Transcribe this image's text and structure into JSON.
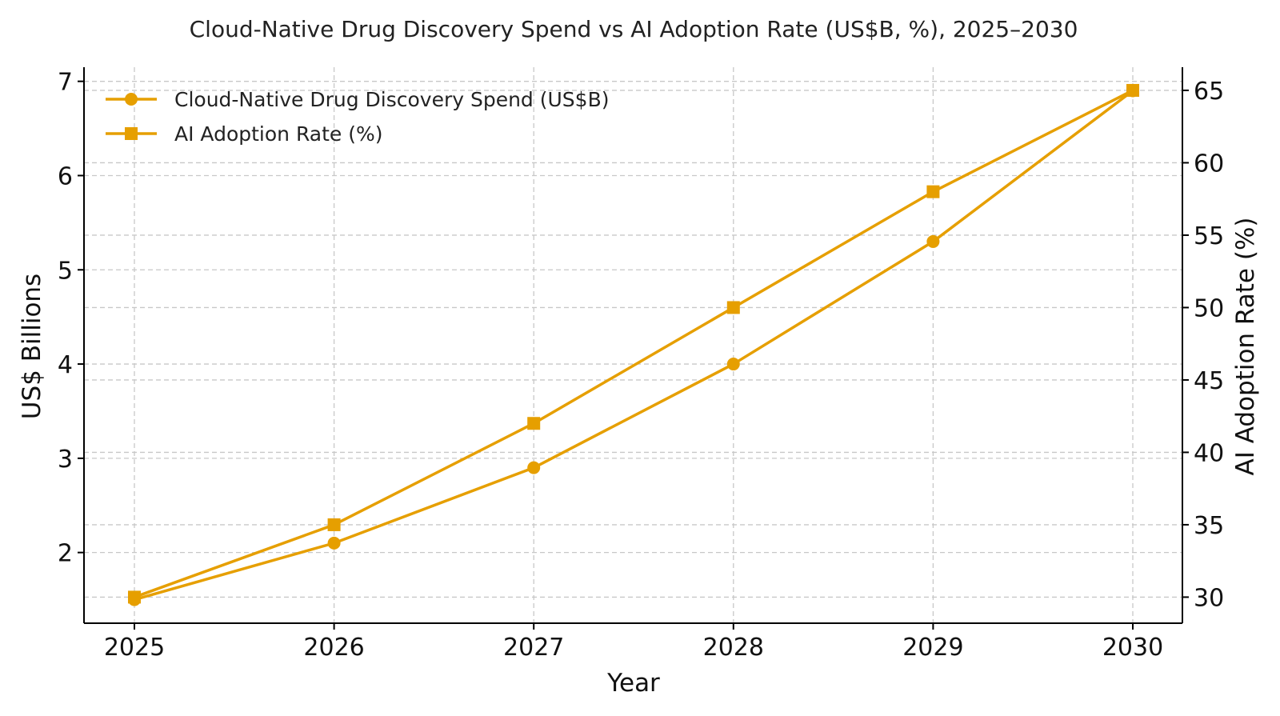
{
  "chart_data": {
    "type": "line",
    "title": "Cloud-Native Drug Discovery Spend vs AI Adoption Rate (US$B, %), 2025–2030",
    "xlabel": "Year",
    "ylabel": "US$ Billions",
    "ylabel_right": "AI Adoption Rate (%)",
    "x": [
      "2025",
      "2026",
      "2027",
      "2028",
      "2029",
      "2030"
    ],
    "ylim": [
      1.25,
      7.15
    ],
    "ylim_right": [
      28.2,
      66.6
    ],
    "yticks": [
      2,
      3,
      4,
      5,
      6,
      7
    ],
    "yticks_right": [
      30,
      35,
      40,
      45,
      50,
      55,
      60,
      65
    ],
    "grid": true,
    "legend_position": "top-left",
    "series": [
      {
        "name": "Cloud-Native Drug Discovery Spend (US$B)",
        "axis": "left",
        "marker": "circle",
        "color": "#E69F00",
        "values": [
          1.5,
          2.1,
          2.9,
          4.0,
          5.3,
          6.9
        ]
      },
      {
        "name": "AI Adoption Rate (%)",
        "axis": "right",
        "marker": "square",
        "color": "#E69F00",
        "values": [
          30,
          35,
          42,
          50,
          58,
          65
        ]
      }
    ]
  }
}
